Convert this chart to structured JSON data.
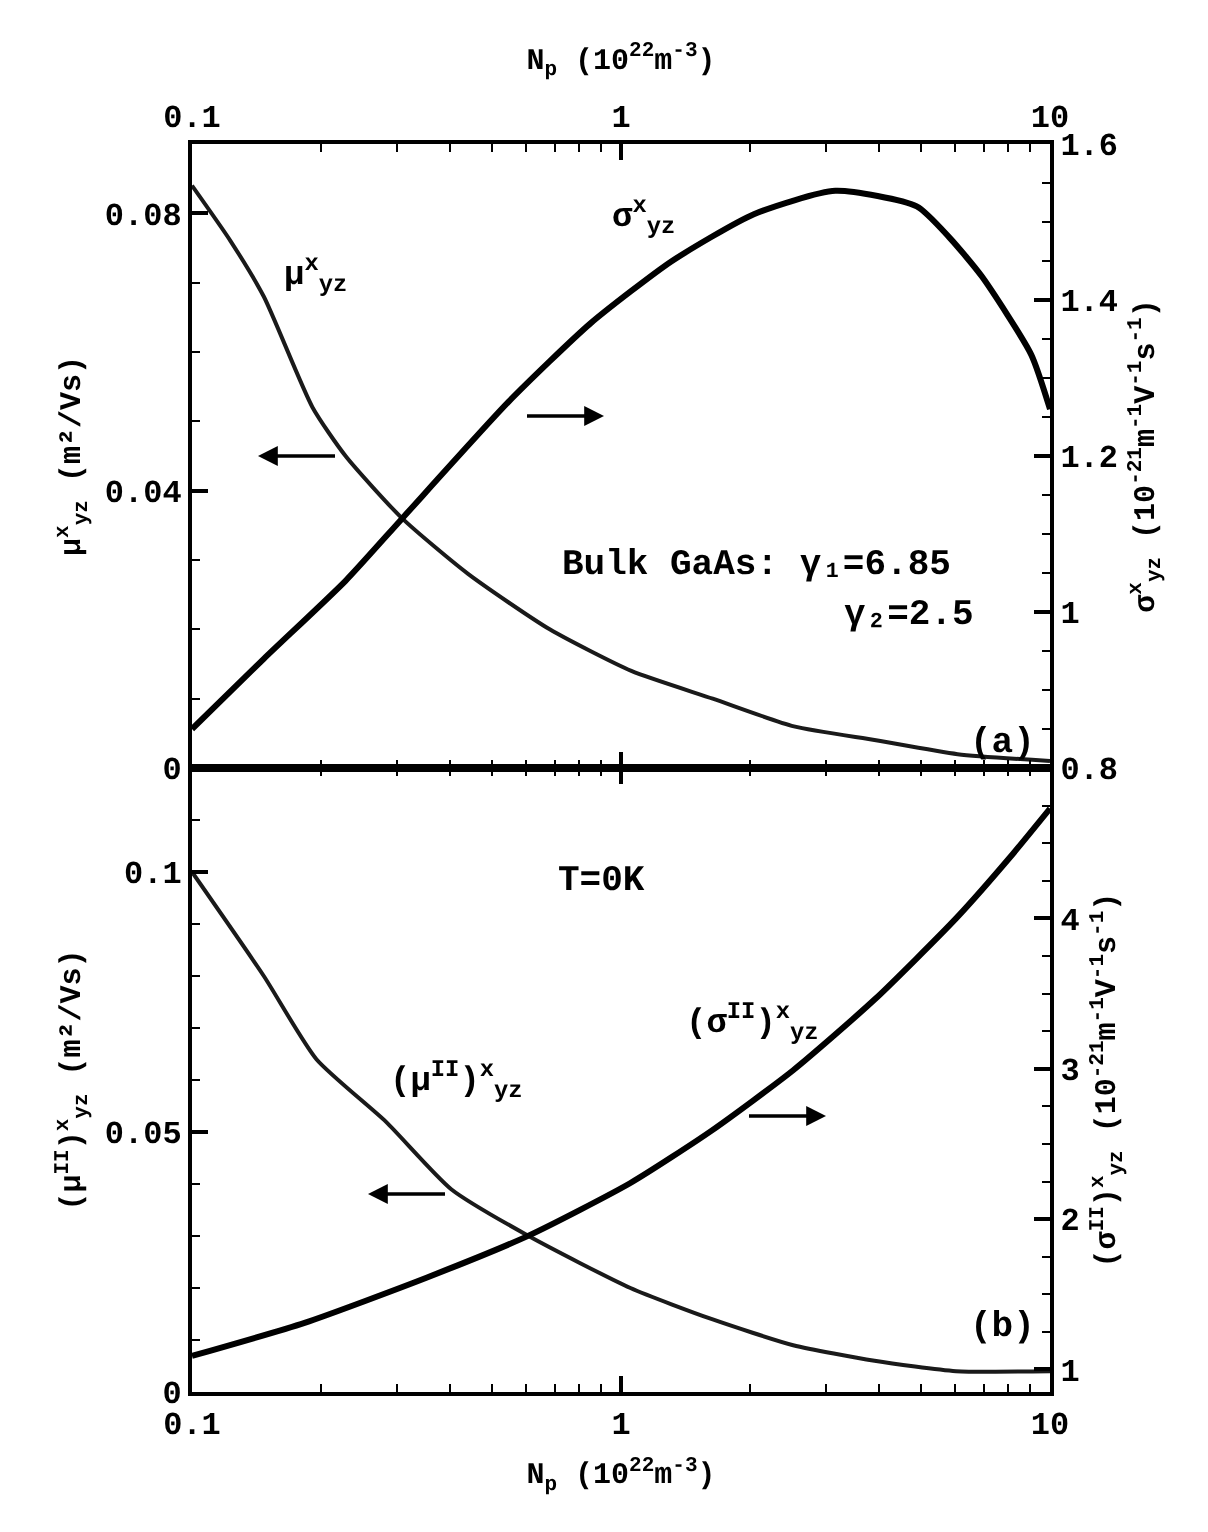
{
  "chart_data": [
    {
      "type": "line",
      "log": "x",
      "legend": false,
      "xlabel": "N$_{p}$ (10$^{22}$m$^{-3}$)",
      "xlim": [
        0.1,
        10
      ],
      "xticks": [
        0.1,
        {
          "value": 0.2,
          "label": null
        },
        {
          "value": 0.3,
          "label": null
        },
        {
          "value": 0.4,
          "label": null
        },
        {
          "value": 0.5,
          "label": null
        },
        {
          "value": 0.6,
          "label": null
        },
        {
          "value": 0.7,
          "label": null
        },
        {
          "value": 0.8,
          "label": null
        },
        {
          "value": 0.9,
          "label": null
        },
        1,
        {
          "value": 2,
          "label": null
        },
        {
          "value": 3,
          "label": null
        },
        {
          "value": 4,
          "label": null
        },
        {
          "value": 5,
          "label": null
        },
        {
          "value": 6,
          "label": null
        },
        {
          "value": 7,
          "label": null
        },
        {
          "value": 8,
          "label": null
        },
        {
          "value": 9,
          "label": null
        },
        10
      ],
      "ylabel": "μ$^{x}$$_{yz}$ (m²/Vs)",
      "ylim": [
        0,
        0.09
      ],
      "yticks": [
        0,
        {
          "value": 0.01,
          "label": null
        },
        {
          "value": 0.02,
          "label": null
        },
        {
          "value": 0.03,
          "label": null
        },
        0.04,
        {
          "value": 0.05,
          "label": null
        },
        {
          "value": 0.06,
          "label": null
        },
        {
          "value": 0.07,
          "label": null
        },
        0.08
      ],
      "y2label": "σ$^{x}$$_{yz}$ (10$^{-21}$m$^{-1}$V$^{-1}$s$^{-1}$)",
      "y2lim": [
        0.8,
        1.6
      ],
      "y2ticks": [
        0.8,
        {
          "value": 0.85,
          "label": null
        },
        {
          "value": 0.9,
          "label": null
        },
        {
          "value": 0.95,
          "label": null
        },
        1,
        {
          "value": 1.05,
          "label": null
        },
        {
          "value": 1.1,
          "label": null
        },
        {
          "value": 1.15,
          "label": null
        },
        1.2,
        {
          "value": 1.25,
          "label": null
        },
        {
          "value": 1.3,
          "label": null
        },
        {
          "value": 1.35,
          "label": null
        },
        1.4,
        {
          "value": 1.45,
          "label": null
        },
        {
          "value": 1.5,
          "label": null
        },
        {
          "value": 1.55,
          "label": null
        },
        1.6
      ],
      "series": [
        {
          "name": "μ$^{x}$$_{yz}$",
          "color": "#1a1a1a",
          "x": [
            0.1,
            0.123,
            0.147,
            0.191,
            0.228,
            0.309,
            0.44,
            0.682,
            1.057,
            1.636,
            2.53,
            3.93,
            6.09,
            10
          ],
          "values": [
            0.084,
            0.076,
            0.068,
            0.052,
            0.045,
            0.036,
            0.028,
            0.02,
            0.014,
            0.01,
            0.006,
            0.004,
            0.002,
            0.001
          ]
        },
        {
          "name": "σ$^{x}$$_{yz}$",
          "color": "#000000",
          "axis": "y2",
          "x": [
            0.1,
            0.147,
            0.228,
            0.309,
            0.548,
            0.849,
            1.315,
            2.04,
            3.16,
            4.89,
            5.83,
            6.94,
            9.04,
            10
          ],
          "values": [
            0.85,
            0.94,
            1.04,
            1.12,
            1.27,
            1.37,
            1.45,
            1.51,
            1.54,
            1.52,
            1.48,
            1.43,
            1.33,
            1.26
          ]
        }
      ],
      "annotations": [
        "Bulk GaAs: γ₁=6.85",
        "γ₂=2.5",
        "(a)"
      ]
    },
    {
      "type": "line",
      "log": "x",
      "legend": false,
      "xlabel": "N$_{p}$ (10$^{22}$m$^{-3}$)",
      "xlim": [
        0.1,
        10
      ],
      "xticks": [
        0.1,
        {
          "value": 0.2,
          "label": null
        },
        {
          "value": 0.3,
          "label": null
        },
        {
          "value": 0.4,
          "label": null
        },
        {
          "value": 0.5,
          "label": null
        },
        {
          "value": 0.6,
          "label": null
        },
        {
          "value": 0.7,
          "label": null
        },
        {
          "value": 0.8,
          "label": null
        },
        {
          "value": 0.9,
          "label": null
        },
        1,
        {
          "value": 2,
          "label": null
        },
        {
          "value": 3,
          "label": null
        },
        {
          "value": 4,
          "label": null
        },
        {
          "value": 5,
          "label": null
        },
        {
          "value": 6,
          "label": null
        },
        {
          "value": 7,
          "label": null
        },
        {
          "value": 8,
          "label": null
        },
        {
          "value": 9,
          "label": null
        },
        10
      ],
      "ylabel": "(μ$^{II}$)$^{x}$$_{yz}$ (m²/Vs)",
      "ylim": [
        0,
        0.12
      ],
      "yticks": [
        0,
        {
          "value": 0.01,
          "label": null
        },
        {
          "value": 0.02,
          "label": null
        },
        {
          "value": 0.03,
          "label": null
        },
        {
          "value": 0.04,
          "label": null
        },
        0.05,
        {
          "value": 0.06,
          "label": null
        },
        {
          "value": 0.07,
          "label": null
        },
        {
          "value": 0.08,
          "label": null
        },
        {
          "value": 0.09,
          "label": null
        },
        0.1,
        {
          "value": 0.11,
          "label": null
        }
      ],
      "y2label": "(σ$^{II}$)$^{x}$$_{yz}$ (10$^{-21}$m$^{-1}$V$^{-1}$s$^{-1}$)",
      "y2lim": [
        0.85,
        5
      ],
      "y2ticks": [
        1,
        {
          "value": 1.25,
          "label": null
        },
        {
          "value": 1.5,
          "label": null
        },
        {
          "value": 1.75,
          "label": null
        },
        2,
        {
          "value": 2.25,
          "label": null
        },
        {
          "value": 2.5,
          "label": null
        },
        {
          "value": 2.75,
          "label": null
        },
        3,
        {
          "value": 3.25,
          "label": null
        },
        {
          "value": 3.5,
          "label": null
        },
        {
          "value": 3.75,
          "label": null
        },
        4,
        {
          "value": 4.25,
          "label": null
        },
        {
          "value": 4.5,
          "label": null
        },
        {
          "value": 4.75,
          "label": null
        }
      ],
      "series": [
        {
          "name": "(μ$^{II}$)$^{x}$$_{yz}$",
          "color": "#1a1a1a",
          "x": [
            0.1,
            0.147,
            0.195,
            0.283,
            0.402,
            0.609,
            1.052,
            1.63,
            2.52,
            3.9,
            6.04,
            10
          ],
          "values": [
            0.1,
            0.08,
            0.064,
            0.052,
            0.039,
            0.03,
            0.02,
            0.014,
            0.009,
            0.006,
            0.004,
            0.004
          ]
        },
        {
          "name": "(σ$^{II}$)$^{x}$$_{yz}$",
          "color": "#000000",
          "axis": "y2",
          "x": [
            0.1,
            0.183,
            0.352,
            0.609,
            1.052,
            1.63,
            2.52,
            3.9,
            6.04,
            8.2,
            10
          ],
          "values": [
            1.09,
            1.31,
            1.61,
            1.89,
            2.24,
            2.59,
            2.99,
            3.46,
            4.0,
            4.43,
            4.73
          ]
        }
      ],
      "annotations": [
        "T=0K",
        "(b)"
      ]
    }
  ]
}
